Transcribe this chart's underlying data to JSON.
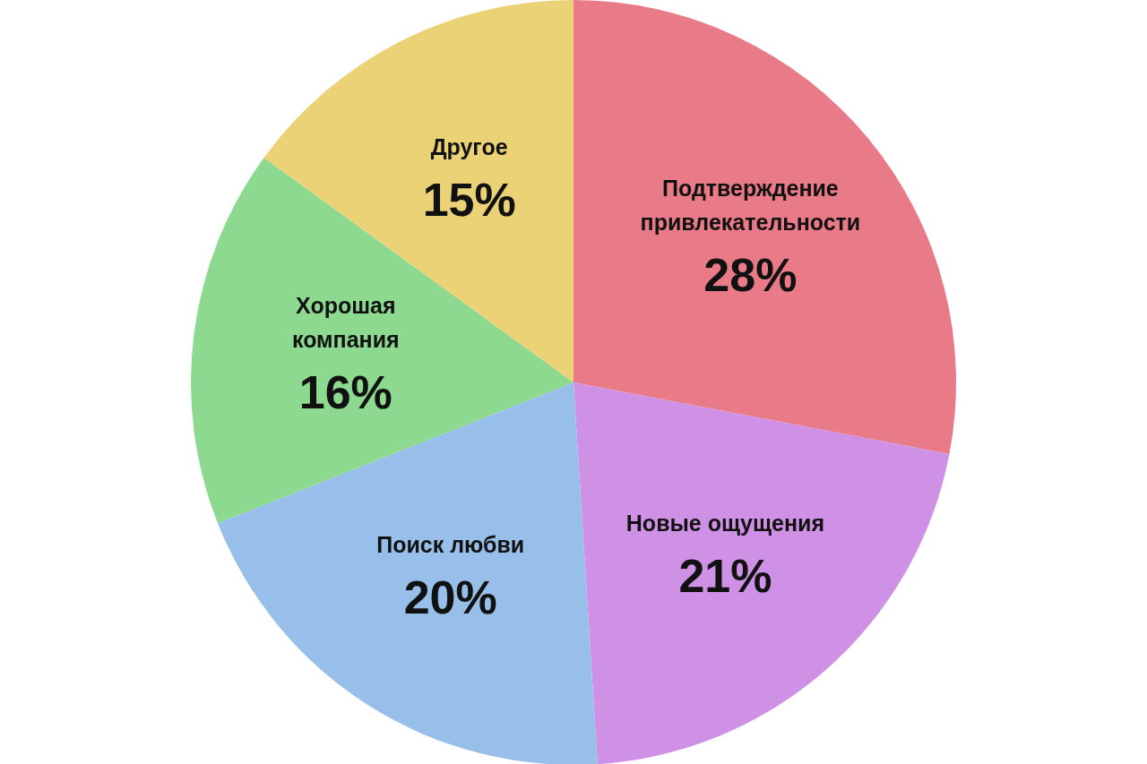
{
  "chart_data": {
    "type": "pie",
    "categories": [
      "Подтверждение привлекательности",
      "Новые ощущения",
      "Поиск любви",
      "Хорошая компания",
      "Другое"
    ],
    "values": [
      28,
      21,
      20,
      16,
      15
    ],
    "value_labels": [
      "28%",
      "21%",
      "20%",
      "16%",
      "15%"
    ],
    "colors": [
      "#e97a87",
      "#cf91e6",
      "#97bfea",
      "#8cd98f",
      "#ebd276"
    ],
    "legend": false
  }
}
